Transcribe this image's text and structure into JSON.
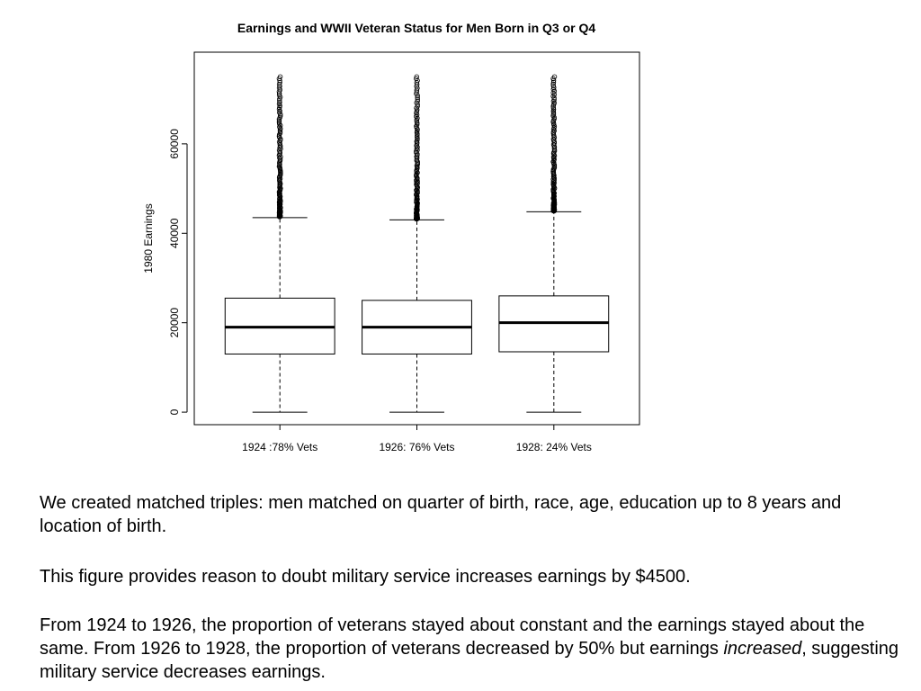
{
  "chart_data": {
    "type": "boxplot",
    "title": "Earnings and WWII Veteran Status for Men Born in Q3 or Q4",
    "xlabel": "",
    "ylabel": "1980 Earnings",
    "ylim": [
      -2800,
      80500
    ],
    "yticks": [
      0,
      20000,
      40000,
      60000
    ],
    "ytick_labels": [
      "0",
      "20000",
      "40000",
      "60000"
    ],
    "grid": false,
    "categories": [
      "1924 :78% Vets",
      "1926: 76% Vets",
      "1928: 24% Vets"
    ],
    "boxes": [
      {
        "label": "1924 :78% Vets",
        "whisker_low": 0,
        "q1": 13000,
        "median": 19000,
        "q3": 25500,
        "whisker_high": 43500,
        "outliers_from": 43700,
        "outliers_to": 75000
      },
      {
        "label": "1926: 76% Vets",
        "whisker_low": 0,
        "q1": 13000,
        "median": 19000,
        "q3": 25000,
        "whisker_high": 43000,
        "outliers_from": 43200,
        "outliers_to": 75000
      },
      {
        "label": "1928: 24% Vets",
        "whisker_low": 0,
        "q1": 13500,
        "median": 20000,
        "q3": 26000,
        "whisker_high": 44800,
        "outliers_from": 45000,
        "outliers_to": 75000
      }
    ]
  },
  "text": {
    "p1": "We created matched triples: men matched on quarter of birth, race, age, education up to 8 years and location of birth.",
    "p2": "This figure provides reason to doubt military service increases earnings by $4500.",
    "p3_a": "From 1924 to 1926, the proportion of veterans stayed about constant and the earnings stayed about the same.  From 1926 to 1928, the proportion of veterans decreased by 50% but earnings ",
    "p3_em": "increased",
    "p3_b": ", suggesting military service decreases earnings."
  }
}
